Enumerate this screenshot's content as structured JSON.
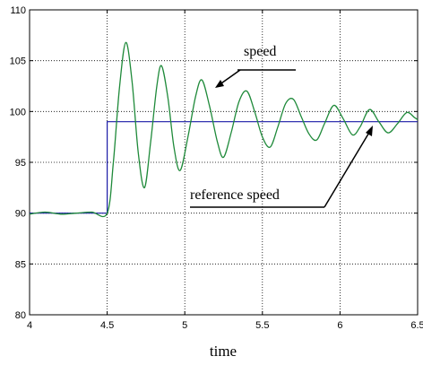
{
  "chart_data": {
    "type": "line",
    "xlabel": "time",
    "ylabel": "",
    "xlim": [
      4,
      6.5
    ],
    "ylim": [
      80,
      110
    ],
    "x_ticks": [
      "4",
      "4.5",
      "5",
      "5.5",
      "6",
      "6.5"
    ],
    "y_ticks": [
      "80",
      "85",
      "90",
      "95",
      "100",
      "105",
      "110"
    ],
    "grid": true,
    "annotations": [
      {
        "text": "speed",
        "points_to": [
          5.17,
          102.2
        ]
      },
      {
        "text": "reference speed",
        "points_to": [
          6.24,
          99.3
        ]
      }
    ],
    "series": [
      {
        "name": "reference speed",
        "color": "#1a1aa6",
        "x": [
          4.0,
          4.5,
          4.5,
          6.5
        ],
        "y": [
          90,
          90,
          99,
          99
        ]
      },
      {
        "name": "speed",
        "color": "#1f8a3a",
        "x": [
          4.0,
          4.1,
          4.2,
          4.3,
          4.4,
          4.5,
          4.54,
          4.58,
          4.62,
          4.66,
          4.7,
          4.74,
          4.78,
          4.82,
          4.85,
          4.89,
          4.93,
          4.97,
          5.02,
          5.07,
          5.11,
          5.16,
          5.21,
          5.25,
          5.3,
          5.35,
          5.4,
          5.45,
          5.5,
          5.55,
          5.6,
          5.65,
          5.7,
          5.75,
          5.8,
          5.85,
          5.9,
          5.96,
          6.02,
          6.08,
          6.13,
          6.19,
          6.25,
          6.31,
          6.37,
          6.43,
          6.48,
          6.5
        ],
        "y": [
          89.9,
          90.1,
          89.9,
          90.0,
          90.1,
          90.0,
          95.0,
          102.5,
          106.8,
          103.0,
          96.0,
          92.5,
          97.0,
          102.5,
          104.5,
          101.5,
          96.5,
          94.2,
          97.5,
          101.5,
          103.1,
          100.5,
          97.0,
          95.5,
          98.0,
          101.0,
          102.0,
          100.0,
          97.5,
          96.5,
          98.5,
          100.8,
          101.2,
          99.5,
          97.8,
          97.2,
          98.8,
          100.6,
          99.3,
          97.7,
          98.5,
          100.2,
          99.0,
          97.9,
          98.8,
          99.9,
          99.4,
          99.2
        ]
      }
    ]
  }
}
